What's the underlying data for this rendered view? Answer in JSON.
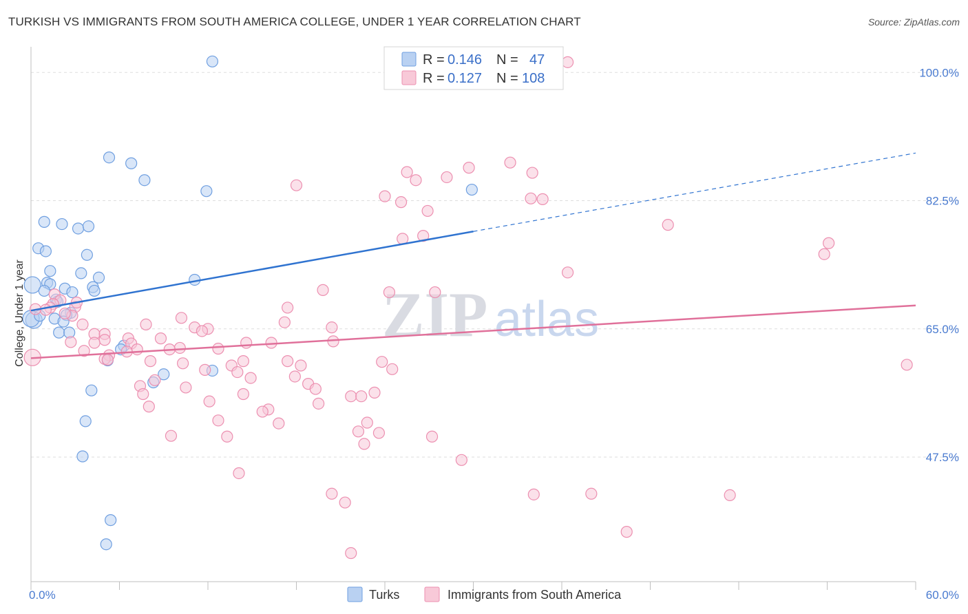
{
  "title": "TURKISH VS IMMIGRANTS FROM SOUTH AMERICA COLLEGE, UNDER 1 YEAR CORRELATION CHART",
  "source": "Source: ZipAtlas.com",
  "chart_data": {
    "type": "scatter",
    "title": "TURKISH VS IMMIGRANTS FROM SOUTH AMERICA COLLEGE, UNDER 1 YEAR CORRELATION CHART",
    "xlabel": "",
    "ylabel": "College, Under 1 year",
    "xlim": [
      0,
      60
    ],
    "ylim": [
      30.5,
      103.5
    ],
    "x_tick_labels": [
      "0.0%",
      "60.0%"
    ],
    "y_ticks": [
      47.5,
      65.0,
      82.5,
      100.0
    ],
    "y_tick_labels": [
      "47.5%",
      "65.0%",
      "82.5%",
      "100.0%"
    ],
    "grid": true,
    "watermark": {
      "zip": "ZIP",
      "atlas": "atlas"
    },
    "legend_stats": [
      {
        "r_label": "R =",
        "r_value": "0.146",
        "n_label": "N =",
        "n_value": "47"
      },
      {
        "r_label": "R =",
        "r_value": "0.127",
        "n_label": "N =",
        "n_value": "108"
      }
    ],
    "series": [
      {
        "name": "Turks",
        "color": "#6f9fe0",
        "fill": "#b9d1f2",
        "trend": {
          "x": [
            0,
            30
          ],
          "y": [
            67.5,
            78.3
          ],
          "dashed_to_x": 60,
          "dashed_to_y": 89.0,
          "color": "#2f73d0"
        },
        "points": [
          [
            12.3,
            101.5
          ],
          [
            5.3,
            88.4
          ],
          [
            6.8,
            87.6
          ],
          [
            7.7,
            85.3
          ],
          [
            11.9,
            83.8
          ],
          [
            29.9,
            84.0
          ],
          [
            0.9,
            79.6
          ],
          [
            2.1,
            79.3
          ],
          [
            3.2,
            78.7
          ],
          [
            3.9,
            79.0
          ],
          [
            0.5,
            76.0
          ],
          [
            1.0,
            75.6
          ],
          [
            3.8,
            75.1
          ],
          [
            1.3,
            72.9
          ],
          [
            3.4,
            72.6
          ],
          [
            4.6,
            72.0
          ],
          [
            11.1,
            71.7
          ],
          [
            1.1,
            71.3
          ],
          [
            1.3,
            71.1
          ],
          [
            2.3,
            70.5
          ],
          [
            2.8,
            70.0
          ],
          [
            4.2,
            70.7
          ],
          [
            4.3,
            70.2
          ],
          [
            0.1,
            71.0
          ],
          [
            1.7,
            69.0
          ],
          [
            2.7,
            67.2
          ],
          [
            2.4,
            66.9
          ],
          [
            0.2,
            66.2
          ],
          [
            1.6,
            66.4
          ],
          [
            2.2,
            66.0
          ],
          [
            1.9,
            64.5
          ],
          [
            2.6,
            64.5
          ],
          [
            6.3,
            62.7
          ],
          [
            6.1,
            62.2
          ],
          [
            5.2,
            60.7
          ],
          [
            9.0,
            58.8
          ],
          [
            12.3,
            59.3
          ],
          [
            8.3,
            57.7
          ],
          [
            4.1,
            56.6
          ],
          [
            3.7,
            52.4
          ],
          [
            3.5,
            47.6
          ],
          [
            5.4,
            38.9
          ],
          [
            5.1,
            35.6
          ],
          [
            0.0,
            66.4
          ],
          [
            0.6,
            66.8
          ],
          [
            1.8,
            68.7
          ],
          [
            0.9,
            70.2
          ]
        ]
      },
      {
        "name": "Immigrants from South America",
        "color": "#ec8fb0",
        "fill": "#f8c9d8",
        "trend": {
          "x": [
            0,
            60
          ],
          "y": [
            61.0,
            68.2
          ],
          "color": "#e0709a"
        },
        "points": [
          [
            36.4,
            101.4
          ],
          [
            32.5,
            87.7
          ],
          [
            29.7,
            87.0
          ],
          [
            34.0,
            86.3
          ],
          [
            25.5,
            86.4
          ],
          [
            28.2,
            85.7
          ],
          [
            26.1,
            85.3
          ],
          [
            18.0,
            84.6
          ],
          [
            24.0,
            83.1
          ],
          [
            33.9,
            82.8
          ],
          [
            34.7,
            82.7
          ],
          [
            25.1,
            82.3
          ],
          [
            26.9,
            81.1
          ],
          [
            43.2,
            79.2
          ],
          [
            26.6,
            77.7
          ],
          [
            25.2,
            77.3
          ],
          [
            54.1,
            76.7
          ],
          [
            53.8,
            75.2
          ],
          [
            36.4,
            72.7
          ],
          [
            19.8,
            70.3
          ],
          [
            24.3,
            70.0
          ],
          [
            27.4,
            70.0
          ],
          [
            1.6,
            69.7
          ],
          [
            2.0,
            68.9
          ],
          [
            1.5,
            68.4
          ],
          [
            3.0,
            68.0
          ],
          [
            1.3,
            67.9
          ],
          [
            17.4,
            67.9
          ],
          [
            1.0,
            67.6
          ],
          [
            0.3,
            67.7
          ],
          [
            2.8,
            66.8
          ],
          [
            10.2,
            66.5
          ],
          [
            17.2,
            65.9
          ],
          [
            3.5,
            65.6
          ],
          [
            7.8,
            65.6
          ],
          [
            11.1,
            65.2
          ],
          [
            12.0,
            65.0
          ],
          [
            20.4,
            65.2
          ],
          [
            11.6,
            64.7
          ],
          [
            4.3,
            64.3
          ],
          [
            5.0,
            64.3
          ],
          [
            8.8,
            63.7
          ],
          [
            6.6,
            63.7
          ],
          [
            5.0,
            63.5
          ],
          [
            2.7,
            63.2
          ],
          [
            14.6,
            63.1
          ],
          [
            16.3,
            63.1
          ],
          [
            6.8,
            63.0
          ],
          [
            20.5,
            63.3
          ],
          [
            4.3,
            63.1
          ],
          [
            10.1,
            62.4
          ],
          [
            9.4,
            62.2
          ],
          [
            12.7,
            62.3
          ],
          [
            7.2,
            62.2
          ],
          [
            3.6,
            62.0
          ],
          [
            6.5,
            61.9
          ],
          [
            5.3,
            61.4
          ],
          [
            5.0,
            60.9
          ],
          [
            5.2,
            60.8
          ],
          [
            8.1,
            60.6
          ],
          [
            14.4,
            60.6
          ],
          [
            17.4,
            60.6
          ],
          [
            10.3,
            60.3
          ],
          [
            23.8,
            60.5
          ],
          [
            13.6,
            60.0
          ],
          [
            18.3,
            60.0
          ],
          [
            24.5,
            59.5
          ],
          [
            11.8,
            59.4
          ],
          [
            14.0,
            59.1
          ],
          [
            17.9,
            58.5
          ],
          [
            14.9,
            58.3
          ],
          [
            8.4,
            58.0
          ],
          [
            18.8,
            57.5
          ],
          [
            7.4,
            57.2
          ],
          [
            10.5,
            57.0
          ],
          [
            19.3,
            56.8
          ],
          [
            14.4,
            56.1
          ],
          [
            23.3,
            56.3
          ],
          [
            7.6,
            56.1
          ],
          [
            21.7,
            55.8
          ],
          [
            22.4,
            55.8
          ],
          [
            12.1,
            55.1
          ],
          [
            19.5,
            54.8
          ],
          [
            8.0,
            54.4
          ],
          [
            16.1,
            54.0
          ],
          [
            15.7,
            53.7
          ],
          [
            12.7,
            52.5
          ],
          [
            16.8,
            52.1
          ],
          [
            22.8,
            52.2
          ],
          [
            22.2,
            51.0
          ],
          [
            23.6,
            50.8
          ],
          [
            9.5,
            50.4
          ],
          [
            13.3,
            50.3
          ],
          [
            27.2,
            50.3
          ],
          [
            22.6,
            49.3
          ],
          [
            29.2,
            47.1
          ],
          [
            14.1,
            45.3
          ],
          [
            20.4,
            42.5
          ],
          [
            21.3,
            41.3
          ],
          [
            34.1,
            42.4
          ],
          [
            38.0,
            42.5
          ],
          [
            47.4,
            42.3
          ],
          [
            40.4,
            37.3
          ],
          [
            21.7,
            34.4
          ],
          [
            59.4,
            60.1
          ],
          [
            0.1,
            61.1
          ],
          [
            3.1,
            68.6
          ],
          [
            2.3,
            67.1
          ]
        ]
      }
    ]
  },
  "legend": {
    "items": [
      {
        "label": "Turks"
      },
      {
        "label": "Immigrants from South America"
      }
    ]
  }
}
